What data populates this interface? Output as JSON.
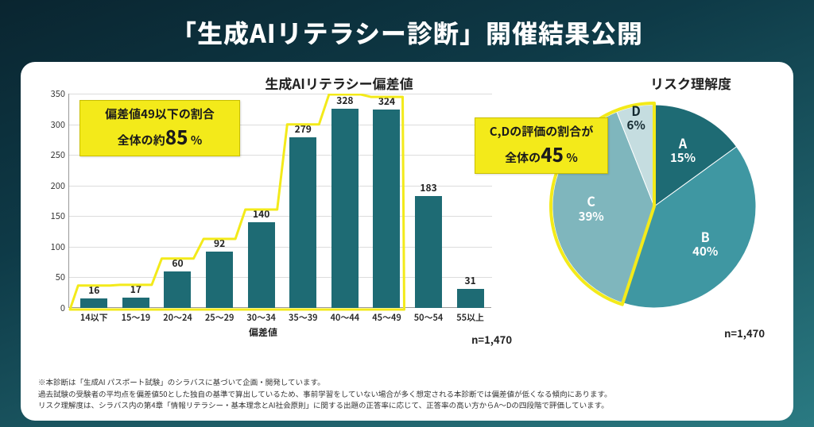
{
  "headline": "「生成AIリテラシー診断」開催結果公開",
  "card": {
    "bar_chart": {
      "title": "生成AIリテラシー偏差値",
      "type": "bar",
      "categories": [
        "14以下",
        "15～19",
        "20～24",
        "25～29",
        "30～34",
        "35～39",
        "40～44",
        "45～49",
        "50～54",
        "55以上"
      ],
      "values": [
        16,
        17,
        60,
        92,
        140,
        279,
        328,
        324,
        183,
        31
      ],
      "bar_color": "#1e6b74",
      "xaxis_title": "偏差値",
      "ylim_max": 350,
      "ytick_step": 50,
      "grid_color": "#dcdcdc",
      "axis_color": "#999999",
      "n_label": "n=1,470",
      "callout": {
        "line1": "偏差値49以下の割合",
        "line2_prefix": "全体の約",
        "line2_number": "85",
        "line2_suffix": " %",
        "bg": "#f3ea1a"
      },
      "highlight_first_n_bars": 8,
      "highlight_color": "#f3ea1a"
    },
    "pie_chart": {
      "title": "リスク理解度",
      "type": "pie",
      "slices": [
        {
          "grade": "A",
          "pct": 15,
          "color": "#1e6b74"
        },
        {
          "grade": "B",
          "pct": 40,
          "color": "#3f97a2"
        },
        {
          "grade": "C",
          "pct": 39,
          "color": "#7fb6bd"
        },
        {
          "grade": "D",
          "pct": 6,
          "color": "#c5dde0"
        }
      ],
      "n_label": "n=1,470",
      "callout": {
        "line1": "C,Dの評価の割合が",
        "line2_prefix": "全体の",
        "line2_number": "45",
        "line2_suffix": " %",
        "bg": "#f3ea1a"
      },
      "highlight_grades": [
        "C",
        "D"
      ],
      "highlight_color": "#f3ea1a"
    },
    "footnotes": [
      "※本診断は「生成AI パスポート試験」のシラバスに基づいて企画・開発しています。",
      "過去試験の受験者の平均点を偏差値50とした独自の基準で算出しているため、事前学習をしていない場合が多く想定される本診断では偏差値が低くなる傾向にあります。",
      "リスク理解度は、シラバス内の第4章「情報リテラシー・基本理念とAI社会原則」に関する出題の正答率に応じて、正答率の高い方からA～Dの四段階で評価しています。"
    ]
  },
  "colors": {
    "page_bg_from": "#0a2530",
    "page_bg_to": "#2a7a82",
    "card_bg": "#ffffff",
    "text": "#222222",
    "headline": "#ffffff"
  }
}
